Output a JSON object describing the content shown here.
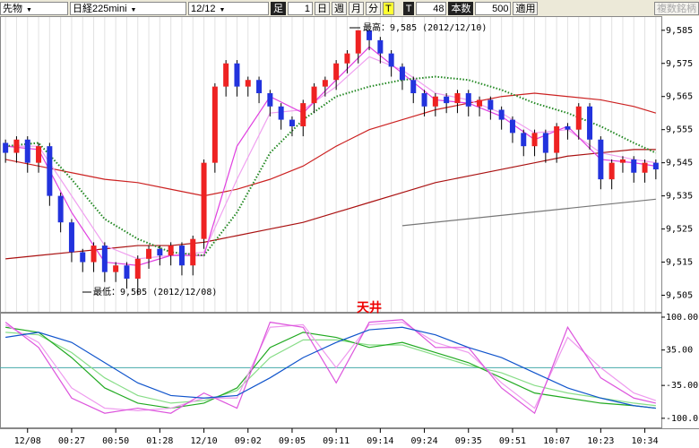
{
  "toolbar": {
    "market": "先物",
    "symbol": "日経225mini",
    "date": "12/12",
    "bar_label": "足",
    "bar_count": "1",
    "day": "日",
    "week": "週",
    "month": "月",
    "minute": "分",
    "tick": "T",
    "tick_label": "T",
    "tick_value": "48",
    "count_label": "本数",
    "count_value": "500",
    "apply": "適用",
    "multi": "複数銘柄"
  },
  "chart_data": [
    {
      "type": "candlestick",
      "xlim": [
        -0.5,
        59.5
      ],
      "ylim": [
        9500,
        9589
      ],
      "yticks": [
        {
          "value": 9585,
          "label": "9,585"
        },
        {
          "value": 9575,
          "label": "9,575"
        },
        {
          "value": 9565,
          "label": "9,565"
        },
        {
          "value": 9555,
          "label": "9,555"
        },
        {
          "value": 9545,
          "label": "9,545"
        },
        {
          "value": 9535,
          "label": "9,535"
        },
        {
          "value": 9525,
          "label": "9,525"
        },
        {
          "value": 9515,
          "label": "9,515"
        },
        {
          "value": 9505,
          "label": "9,505"
        }
      ],
      "up_color": "#ee2222",
      "down_color": "#2233dd",
      "candles": {
        "open": [
          9551,
          9548,
          9552,
          9545,
          9550,
          9535,
          9527,
          9518,
          9515,
          9520,
          9512,
          9514,
          9510,
          9516,
          9519,
          9517,
          9520,
          9514,
          9522,
          9545,
          9568,
          9575,
          9568,
          9570,
          9566,
          9562,
          9558,
          9556,
          9563,
          9568,
          9570,
          9575,
          9578,
          9585,
          9582,
          9578,
          9574,
          9570,
          9566,
          9562,
          9565,
          9563,
          9566,
          9562,
          9564,
          9561,
          9558,
          9554,
          9550,
          9554,
          9548,
          9556,
          9555,
          9562,
          9552,
          9540,
          9545,
          9546,
          9542,
          9545
        ],
        "high": [
          9552,
          9553,
          9553,
          9551,
          9551,
          9536,
          9528,
          9519,
          9521,
          9521,
          9515,
          9515,
          9517,
          9520,
          9520,
          9521,
          9521,
          9523,
          9546,
          9569,
          9576,
          9576,
          9571,
          9571,
          9567,
          9563,
          9559,
          9564,
          9569,
          9571,
          9576,
          9579,
          9585,
          9585,
          9583,
          9579,
          9575,
          9571,
          9567,
          9566,
          9566,
          9567,
          9567,
          9565,
          9565,
          9562,
          9559,
          9555,
          9555,
          9555,
          9557,
          9557,
          9563,
          9563,
          9553,
          9546,
          9547,
          9547,
          9546,
          9546
        ],
        "low": [
          9545,
          9545,
          9542,
          9542,
          9532,
          9524,
          9515,
          9512,
          9512,
          9509,
          9509,
          9507,
          9505,
          9513,
          9514,
          9514,
          9511,
          9511,
          9519,
          9542,
          9565,
          9565,
          9565,
          9563,
          9559,
          9555,
          9553,
          9553,
          9560,
          9565,
          9567,
          9572,
          9575,
          9579,
          9575,
          9571,
          9567,
          9563,
          9559,
          9559,
          9560,
          9560,
          9559,
          9559,
          9558,
          9555,
          9551,
          9547,
          9547,
          9545,
          9545,
          9552,
          9552,
          9549,
          9537,
          9537,
          9542,
          9539,
          9539,
          9540
        ],
        "close": [
          9548,
          9552,
          9545,
          9550,
          9535,
          9527,
          9518,
          9515,
          9520,
          9512,
          9514,
          9510,
          9516,
          9519,
          9517,
          9520,
          9514,
          9522,
          9545,
          9568,
          9575,
          9568,
          9570,
          9566,
          9562,
          9558,
          9556,
          9563,
          9568,
          9570,
          9575,
          9578,
          9585,
          9582,
          9578,
          9574,
          9570,
          9566,
          9562,
          9565,
          9563,
          9566,
          9562,
          9564,
          9561,
          9558,
          9554,
          9550,
          9554,
          9548,
          9556,
          9555,
          9562,
          9552,
          9540,
          9545,
          9546,
          9542,
          9545,
          9543
        ]
      },
      "series": [
        {
          "color": "#cc2222",
          "x": [
            0,
            3,
            6,
            9,
            12,
            15,
            18,
            21,
            24,
            27,
            30,
            33,
            36,
            39,
            42,
            45,
            48,
            51,
            54,
            57,
            59
          ],
          "values": [
            9546,
            9544,
            9542,
            9540,
            9539,
            9537,
            9535,
            9537,
            9540,
            9544,
            9550,
            9555,
            9558,
            9561,
            9563,
            9565,
            9566,
            9565,
            9564,
            9562,
            9560
          ]
        },
        {
          "color": "#aa1111",
          "x": [
            0,
            3,
            6,
            9,
            12,
            15,
            18,
            21,
            24,
            27,
            30,
            33,
            36,
            39,
            42,
            45,
            48,
            51,
            54,
            57,
            59
          ],
          "values": [
            9516,
            9517,
            9518,
            9519,
            9520,
            9520,
            9521,
            9523,
            9525,
            9527,
            9530,
            9533,
            9536,
            9539,
            9541,
            9543,
            9545,
            9547,
            9548,
            9549,
            9549
          ]
        },
        {
          "color": "#777777",
          "x": [
            36,
            59
          ],
          "values": [
            9526,
            9534
          ]
        },
        {
          "color": "#f0a0f0",
          "x": [
            0,
            3,
            6,
            9,
            12,
            15,
            18,
            21,
            24,
            27,
            30,
            33,
            36,
            39,
            42,
            45,
            48,
            51,
            54,
            57,
            59
          ],
          "values": [
            9550,
            9550,
            9535,
            9520,
            9516,
            9517,
            9518,
            9540,
            9560,
            9561,
            9568,
            9577,
            9573,
            9566,
            9564,
            9560,
            9554,
            9555,
            9548,
            9546,
            9545
          ]
        },
        {
          "color": "#e040e0",
          "x": [
            0,
            3,
            6,
            9,
            12,
            15,
            18,
            21,
            24,
            27,
            30,
            33,
            36,
            39,
            42,
            45,
            48,
            51,
            54,
            57,
            59
          ],
          "values": [
            9550,
            9549,
            9530,
            9515,
            9514,
            9517,
            9517,
            9550,
            9565,
            9560,
            9570,
            9580,
            9572,
            9564,
            9563,
            9559,
            9552,
            9556,
            9546,
            9545,
            9544
          ]
        },
        {
          "color": "#228822",
          "dash": "dotted",
          "x": [
            0,
            3,
            6,
            9,
            12,
            15,
            18,
            21,
            24,
            27,
            30,
            33,
            36,
            39,
            42,
            45,
            48,
            51,
            54,
            57,
            59
          ],
          "values": [
            9550,
            9551,
            9540,
            9528,
            9522,
            9518,
            9517,
            9530,
            9548,
            9558,
            9565,
            9568,
            9570,
            9571,
            9570,
            9567,
            9563,
            9560,
            9556,
            9551,
            9548
          ]
        }
      ],
      "annotations": {
        "high": "最高：9,585 (2012/12/10)",
        "low": "最低：9,505 (2012/12/08)"
      }
    },
    {
      "type": "line",
      "xlim": [
        -0.5,
        59.5
      ],
      "ylim": [
        -118,
        107
      ],
      "reference_line": 0,
      "yticks": [
        {
          "value": 100,
          "label": "100.00"
        },
        {
          "value": 35,
          "label": "35.00"
        },
        {
          "value": -35,
          "label": "-35.00"
        },
        {
          "value": -100,
          "label": "-100.0"
        }
      ],
      "xticks": [
        {
          "value": 2,
          "label": "12/08"
        },
        {
          "value": 6,
          "label": "00:27"
        },
        {
          "value": 10,
          "label": "00:50"
        },
        {
          "value": 14,
          "label": "01:28"
        },
        {
          "value": 18,
          "label": "12/10"
        },
        {
          "value": 22,
          "label": "09:02"
        },
        {
          "value": 26,
          "label": "09:05"
        },
        {
          "value": 30,
          "label": "09:11"
        },
        {
          "value": 34,
          "label": "09:14"
        },
        {
          "value": 38,
          "label": "09:24"
        },
        {
          "value": 42,
          "label": "09:35"
        },
        {
          "value": 46,
          "label": "09:51"
        },
        {
          "value": 50,
          "label": "10:07"
        },
        {
          "value": 54,
          "label": "10:23"
        },
        {
          "value": 58,
          "label": "10:34"
        }
      ],
      "series": [
        {
          "color": "#88dd88",
          "x": [
            0,
            3,
            6,
            9,
            12,
            15,
            18,
            21,
            24,
            27,
            30,
            33,
            36,
            39,
            42,
            45,
            48,
            51,
            54,
            57,
            59
          ],
          "values": [
            70,
            65,
            30,
            -20,
            -55,
            -70,
            -65,
            -45,
            20,
            55,
            55,
            45,
            45,
            25,
            5,
            -10,
            -35,
            -50,
            -60,
            -70,
            -75
          ]
        },
        {
          "color": "#22aa22",
          "x": [
            0,
            3,
            6,
            9,
            12,
            15,
            18,
            21,
            24,
            27,
            30,
            33,
            36,
            39,
            42,
            45,
            48,
            51,
            54,
            57,
            59
          ],
          "values": [
            80,
            70,
            20,
            -40,
            -70,
            -80,
            -70,
            -40,
            40,
            70,
            60,
            40,
            50,
            30,
            10,
            -20,
            -50,
            -60,
            -70,
            -75,
            -80
          ]
        },
        {
          "color": "#ee99ee",
          "x": [
            0,
            3,
            6,
            9,
            12,
            15,
            18,
            21,
            24,
            27,
            30,
            33,
            36,
            39,
            42,
            45,
            48,
            51,
            54,
            57,
            59
          ],
          "values": [
            85,
            50,
            -40,
            -80,
            -85,
            -80,
            -60,
            -60,
            80,
            85,
            0,
            85,
            90,
            50,
            30,
            -30,
            -80,
            60,
            0,
            -50,
            -65
          ]
        },
        {
          "color": "#dd55dd",
          "x": [
            0,
            3,
            6,
            9,
            12,
            15,
            18,
            21,
            24,
            27,
            30,
            33,
            36,
            39,
            42,
            45,
            48,
            51,
            54,
            57,
            59
          ],
          "values": [
            90,
            40,
            -60,
            -90,
            -80,
            -90,
            -50,
            -80,
            90,
            80,
            -30,
            90,
            95,
            40,
            40,
            -40,
            -90,
            80,
            -20,
            -60,
            -70
          ]
        },
        {
          "color": "#1155cc",
          "x": [
            0,
            3,
            6,
            9,
            12,
            15,
            18,
            21,
            24,
            27,
            30,
            33,
            36,
            39,
            42,
            45,
            48,
            51,
            54,
            57,
            59
          ],
          "values": [
            60,
            70,
            50,
            10,
            -30,
            -55,
            -60,
            -55,
            -20,
            20,
            50,
            75,
            80,
            65,
            40,
            20,
            -10,
            -40,
            -60,
            -75,
            -80
          ]
        }
      ],
      "annotations": {
        "top": "天井"
      }
    }
  ]
}
